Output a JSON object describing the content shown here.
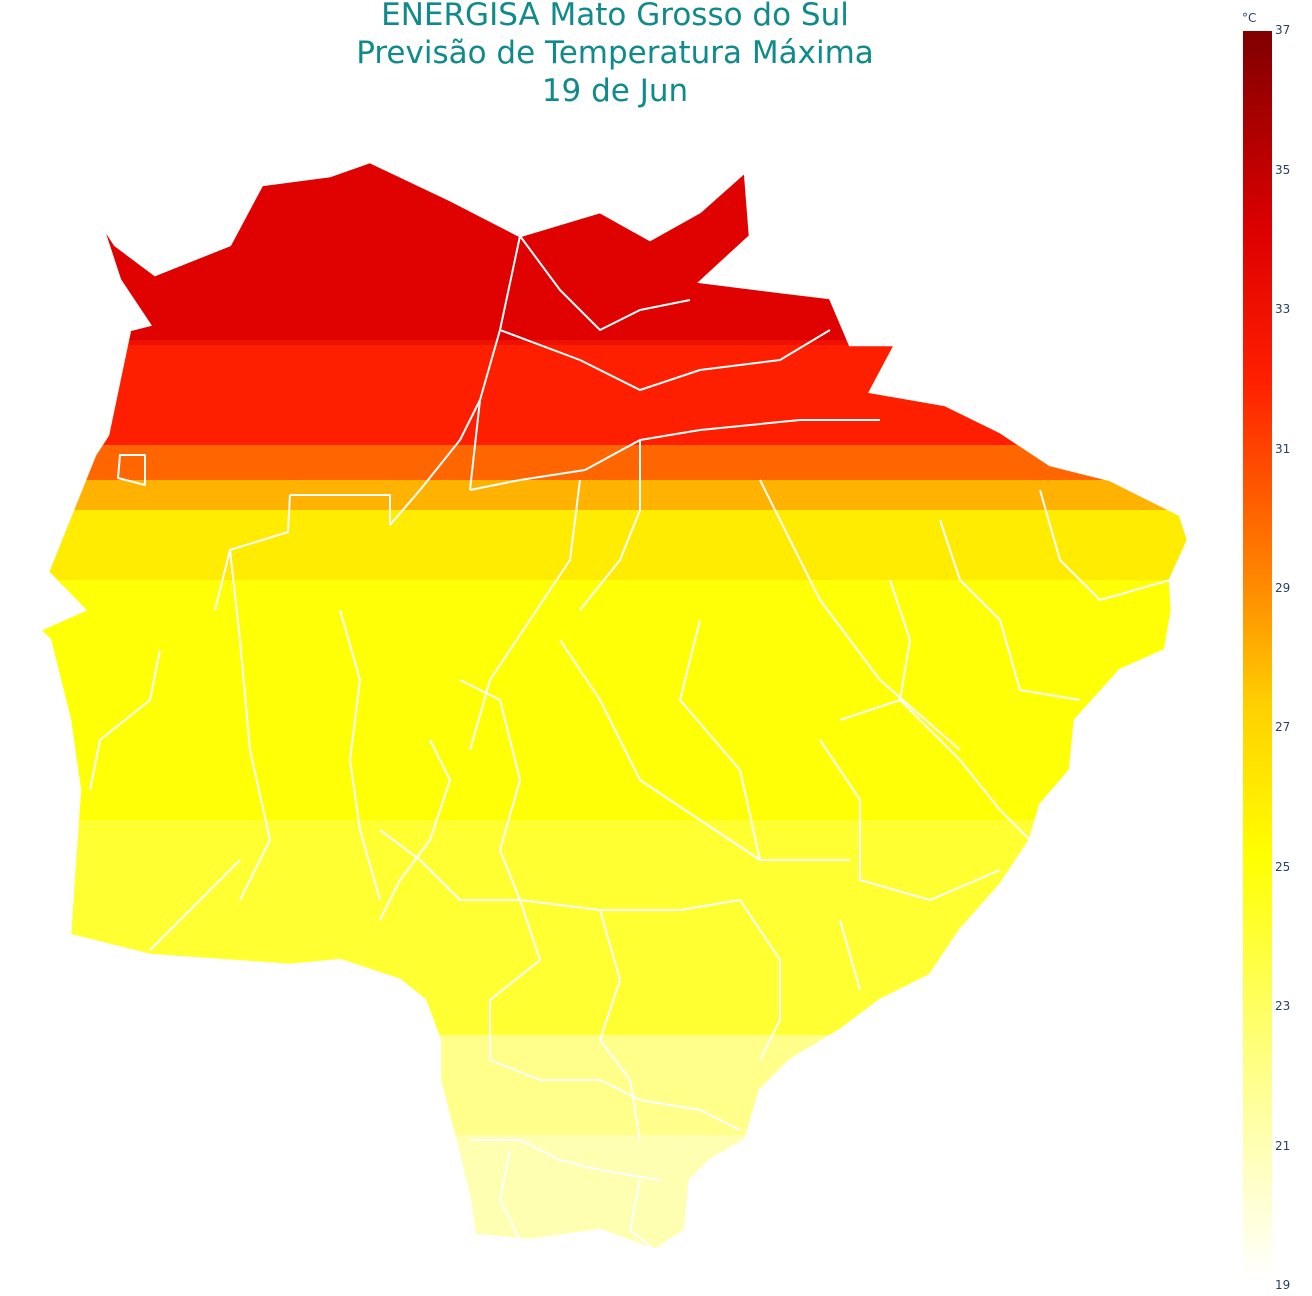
{
  "title": {
    "line1": "ENERGISA Mato Grosso do Sul",
    "line2": "Previsão de Temperatura Máxima",
    "line3": "19 de Jun"
  },
  "colorbar": {
    "unit": "°C",
    "ticks": [
      "37",
      "35",
      "33",
      "31",
      "29",
      "27",
      "25",
      "23",
      "21",
      "19"
    ],
    "min": 19,
    "max": 37,
    "colors": {
      "dark_red": "#800000",
      "red": "#dd0000",
      "orange_red": "#ff2000",
      "orange": "#ff8000",
      "amber": "#ffd000",
      "yellow": "#ffff00",
      "light_yellow": "#ffff80",
      "white": "#ffffff"
    }
  },
  "map": {
    "region": "Mato Grosso do Sul",
    "boundary_color": "#ffffff",
    "temperature_bands_c": [
      34,
      33,
      32,
      30,
      28,
      26,
      25,
      24,
      22,
      21
    ]
  }
}
